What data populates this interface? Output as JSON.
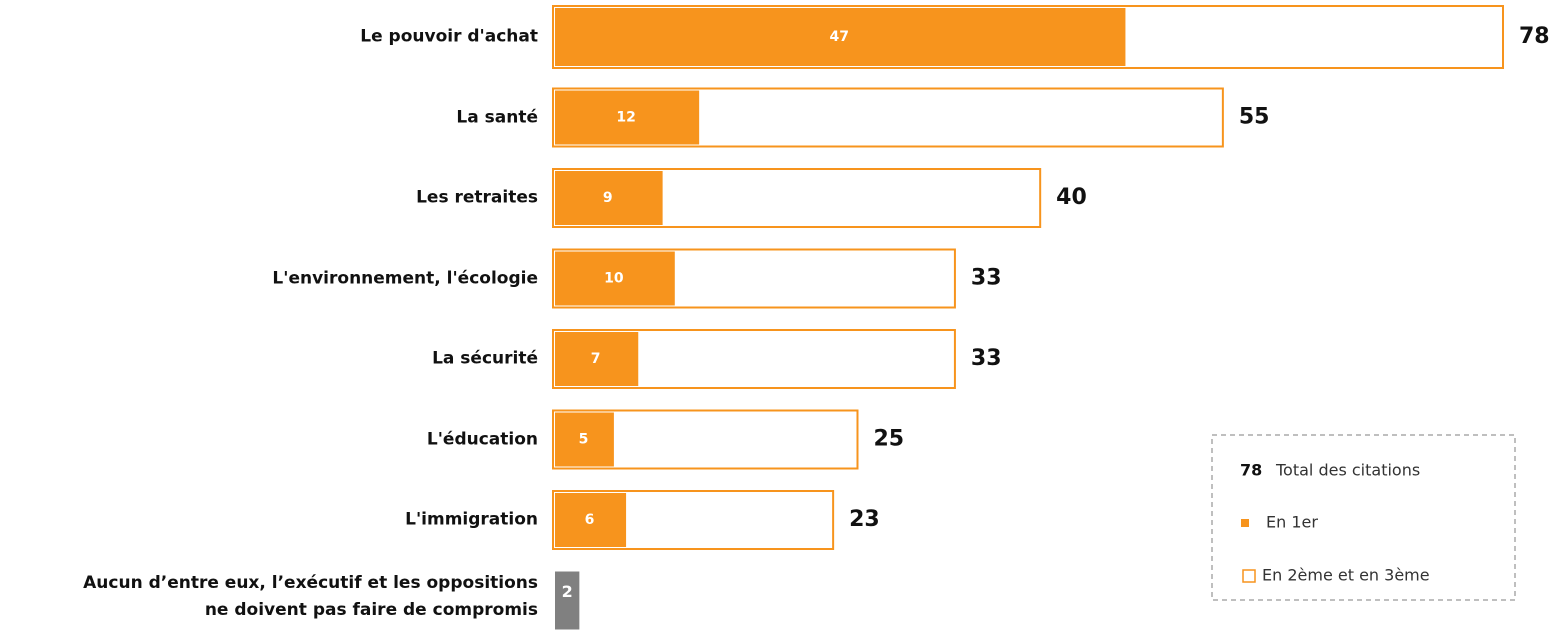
{
  "chart_data": {
    "type": "bar",
    "orientation": "horizontal",
    "categories": [
      "Le pouvoir d'achat",
      "La santé",
      "Les retraites",
      "L'environnement, l'écologie",
      "La sécurité",
      "L'éducation",
      "L'immigration",
      "Aucun d’entre eux, l’exécutif et les oppositions\nne doivent pas faire de compromis"
    ],
    "series": [
      {
        "name": "En 1er",
        "color": "#f7941d",
        "values": [
          47,
          12,
          9,
          10,
          7,
          5,
          6,
          null
        ]
      }
    ],
    "totals": {
      "name": "Total des citations",
      "outline_name": "En 2ème et en 3ème",
      "color": "#f7941d",
      "other_color": "#808080",
      "sample": 78,
      "values": [
        78,
        55,
        40,
        33,
        33,
        25,
        23,
        2
      ]
    },
    "xlim": [
      0,
      78
    ]
  }
}
